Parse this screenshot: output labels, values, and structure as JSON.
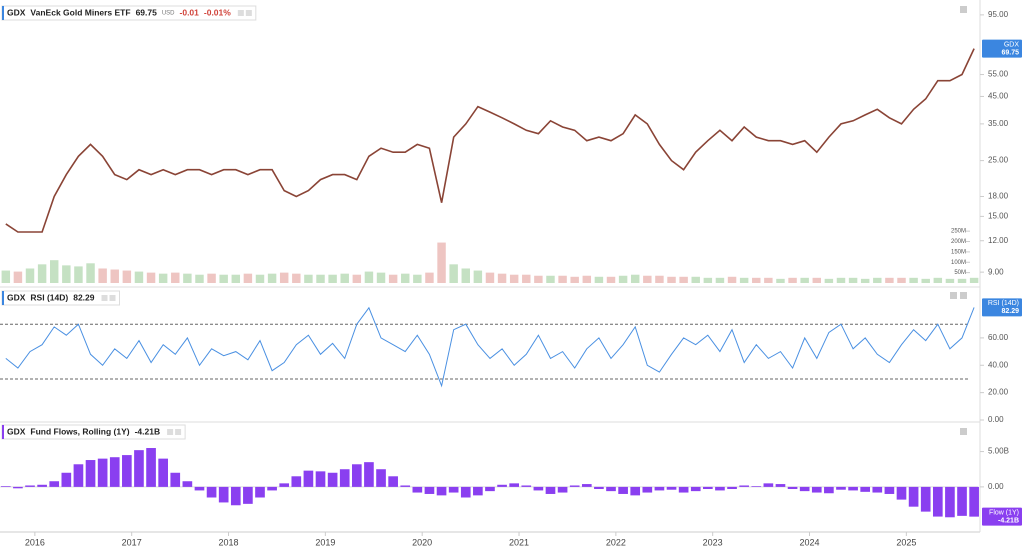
{
  "chart_data": [
    {
      "type": "line",
      "symbol": "GDX",
      "title": "VanEck Gold Miners ETF",
      "last": "69.75",
      "currency": "USD",
      "change": "-0.01",
      "change_pct": "-0.01%",
      "badge": "GDX",
      "color": "#8a4436",
      "badge_color": "#3b86e0",
      "log_scale": true,
      "x": [
        2015.7,
        2015.825,
        2015.95,
        2016.075,
        2016.2,
        2016.325,
        2016.45,
        2016.575,
        2016.7,
        2016.825,
        2016.95,
        2017.075,
        2017.2,
        2017.325,
        2017.45,
        2017.575,
        2017.7,
        2017.825,
        2017.95,
        2018.075,
        2018.2,
        2018.325,
        2018.45,
        2018.575,
        2018.7,
        2018.825,
        2018.95,
        2019.075,
        2019.2,
        2019.325,
        2019.45,
        2019.575,
        2019.7,
        2019.825,
        2019.95,
        2020.075,
        2020.2,
        2020.325,
        2020.45,
        2020.575,
        2020.7,
        2020.825,
        2020.95,
        2021.075,
        2021.2,
        2021.325,
        2021.45,
        2021.575,
        2021.7,
        2021.825,
        2021.95,
        2022.075,
        2022.2,
        2022.325,
        2022.45,
        2022.575,
        2022.7,
        2022.825,
        2022.95,
        2023.075,
        2023.2,
        2023.325,
        2023.45,
        2023.575,
        2023.7,
        2023.825,
        2023.95,
        2024.075,
        2024.2,
        2024.325,
        2024.45,
        2024.575,
        2024.7,
        2024.825,
        2024.95,
        2025.075,
        2025.2,
        2025.325,
        2025.45,
        2025.575,
        2025.7
      ],
      "values": [
        14,
        13,
        13,
        13,
        18,
        22,
        26,
        29,
        26,
        22,
        21,
        23,
        22,
        23,
        22,
        23,
        23,
        22,
        23,
        23,
        22,
        23,
        23,
        19,
        18,
        19,
        21,
        22,
        22,
        21,
        26,
        28,
        27,
        27,
        29,
        28,
        17,
        31,
        35,
        41,
        39,
        37,
        35,
        33,
        32,
        36,
        34,
        33,
        30,
        31,
        30,
        32,
        38,
        35,
        29,
        25,
        23,
        27,
        30,
        33,
        30,
        34,
        31,
        30,
        30,
        29,
        30,
        27,
        31,
        35,
        36,
        38,
        40,
        37,
        35,
        40,
        44,
        52,
        52,
        55,
        69.75
      ],
      "xlim": [
        2015.64,
        2025.74
      ],
      "ylim": [
        8,
        104
      ],
      "yticks": [
        {
          "value": 95,
          "label": "95.00"
        },
        {
          "value": 55,
          "label": "55.00"
        },
        {
          "value": 45,
          "label": "45.00"
        },
        {
          "value": 35,
          "label": "35.00"
        },
        {
          "value": 25,
          "label": "25.00"
        },
        {
          "value": 18,
          "label": "18.00"
        },
        {
          "value": 15,
          "label": "15.00"
        },
        {
          "value": 12,
          "label": "12.00"
        },
        {
          "value": 9,
          "label": "9.00"
        }
      ],
      "volume": {
        "type": "bar",
        "up_color": "#b7d9b4",
        "down_color": "#eab7b3",
        "values": [
          60000000,
          55000000,
          70000000,
          90000000,
          110000000,
          85000000,
          80000000,
          95000000,
          70000000,
          65000000,
          60000000,
          55000000,
          50000000,
          45000000,
          50000000,
          45000000,
          40000000,
          45000000,
          40000000,
          40000000,
          45000000,
          40000000,
          45000000,
          50000000,
          45000000,
          40000000,
          40000000,
          40000000,
          45000000,
          40000000,
          55000000,
          50000000,
          40000000,
          45000000,
          40000000,
          50000000,
          195000000,
          90000000,
          70000000,
          60000000,
          50000000,
          45000000,
          40000000,
          40000000,
          35000000,
          35000000,
          35000000,
          30000000,
          35000000,
          30000000,
          30000000,
          35000000,
          40000000,
          35000000,
          35000000,
          30000000,
          30000000,
          30000000,
          25000000,
          25000000,
          30000000,
          25000000,
          25000000,
          25000000,
          20000000,
          25000000,
          25000000,
          25000000,
          20000000,
          25000000,
          25000000,
          20000000,
          25000000,
          25000000,
          25000000,
          25000000,
          20000000,
          25000000,
          20000000,
          20000000,
          25000000
        ],
        "y2lim": [
          0,
          270000000
        ],
        "y2ticks": [
          {
            "value": 250000000,
            "label": "250M"
          },
          {
            "value": 200000000,
            "label": "200M"
          },
          {
            "value": 150000000,
            "label": "150M"
          },
          {
            "value": 100000000,
            "label": "100M"
          },
          {
            "value": 50000000,
            "label": "50M"
          }
        ]
      }
    },
    {
      "type": "line",
      "symbol": "GDX",
      "title": "RSI (14D)",
      "last": "82.29",
      "color": "#4a90e2",
      "badge_color": "#3b86e0",
      "x": [
        2015.7,
        2015.825,
        2015.95,
        2016.075,
        2016.2,
        2016.325,
        2016.45,
        2016.575,
        2016.7,
        2016.825,
        2016.95,
        2017.075,
        2017.2,
        2017.325,
        2017.45,
        2017.575,
        2017.7,
        2017.825,
        2017.95,
        2018.075,
        2018.2,
        2018.325,
        2018.45,
        2018.575,
        2018.7,
        2018.825,
        2018.95,
        2019.075,
        2019.2,
        2019.325,
        2019.45,
        2019.575,
        2019.7,
        2019.825,
        2019.95,
        2020.075,
        2020.2,
        2020.325,
        2020.45,
        2020.575,
        2020.7,
        2020.825,
        2020.95,
        2021.075,
        2021.2,
        2021.325,
        2021.45,
        2021.575,
        2021.7,
        2021.825,
        2021.95,
        2022.075,
        2022.2,
        2022.325,
        2022.45,
        2022.575,
        2022.7,
        2022.825,
        2022.95,
        2023.075,
        2023.2,
        2023.325,
        2023.45,
        2023.575,
        2023.7,
        2023.825,
        2023.95,
        2024.075,
        2024.2,
        2024.325,
        2024.45,
        2024.575,
        2024.7,
        2024.825,
        2024.95,
        2025.075,
        2025.2,
        2025.325,
        2025.45,
        2025.575,
        2025.7
      ],
      "values": [
        45,
        38,
        50,
        55,
        68,
        62,
        70,
        48,
        40,
        52,
        45,
        58,
        42,
        55,
        48,
        60,
        40,
        52,
        47,
        50,
        44,
        58,
        36,
        42,
        55,
        62,
        48,
        56,
        45,
        70,
        82,
        60,
        55,
        50,
        62,
        48,
        25,
        66,
        70,
        55,
        45,
        52,
        40,
        48,
        62,
        45,
        50,
        38,
        52,
        60,
        45,
        55,
        68,
        40,
        35,
        48,
        60,
        55,
        62,
        50,
        66,
        42,
        55,
        45,
        50,
        38,
        60,
        45,
        64,
        70,
        52,
        60,
        48,
        42,
        55,
        66,
        58,
        70,
        52,
        60,
        82.29
      ],
      "bands": [
        30,
        70
      ],
      "xlim": [
        2015.64,
        2025.74
      ],
      "ylim": [
        0,
        95
      ],
      "yticks": [
        {
          "value": 60,
          "label": "60.00"
        },
        {
          "value": 40,
          "label": "40.00"
        },
        {
          "value": 20,
          "label": "20.00"
        },
        {
          "value": 0,
          "label": "0.00"
        }
      ]
    },
    {
      "type": "bar",
      "symbol": "GDX",
      "title": "Fund Flows, Rolling (1Y)",
      "last": "-4.21B",
      "badge": "Flow (1Y)",
      "color": "#8a3ff0",
      "badge_color": "#8a3ff0",
      "x": [
        2015.7,
        2015.825,
        2015.95,
        2016.075,
        2016.2,
        2016.325,
        2016.45,
        2016.575,
        2016.7,
        2016.825,
        2016.95,
        2017.075,
        2017.2,
        2017.325,
        2017.45,
        2017.575,
        2017.7,
        2017.825,
        2017.95,
        2018.075,
        2018.2,
        2018.325,
        2018.45,
        2018.575,
        2018.7,
        2018.825,
        2018.95,
        2019.075,
        2019.2,
        2019.325,
        2019.45,
        2019.575,
        2019.7,
        2019.825,
        2019.95,
        2020.075,
        2020.2,
        2020.325,
        2020.45,
        2020.575,
        2020.7,
        2020.825,
        2020.95,
        2021.075,
        2021.2,
        2021.325,
        2021.45,
        2021.575,
        2021.7,
        2021.825,
        2021.95,
        2022.075,
        2022.2,
        2022.325,
        2022.45,
        2022.575,
        2022.7,
        2022.825,
        2022.95,
        2023.075,
        2023.2,
        2023.325,
        2023.45,
        2023.575,
        2023.7,
        2023.825,
        2023.95,
        2024.075,
        2024.2,
        2024.325,
        2024.45,
        2024.575,
        2024.7,
        2024.825,
        2024.95,
        2025.075,
        2025.2,
        2025.325,
        2025.45,
        2025.575,
        2025.7
      ],
      "values": [
        0.1,
        -0.2,
        0.2,
        0.3,
        0.8,
        2.0,
        3.2,
        3.8,
        4.0,
        4.2,
        4.5,
        5.2,
        5.5,
        4.0,
        2.0,
        0.8,
        -0.5,
        -1.5,
        -2.2,
        -2.6,
        -2.4,
        -1.5,
        -0.5,
        0.5,
        1.5,
        2.3,
        2.2,
        2.0,
        2.5,
        3.2,
        3.5,
        2.5,
        1.5,
        0.2,
        -0.8,
        -1.0,
        -1.2,
        -0.8,
        -1.5,
        -1.2,
        -0.6,
        0.3,
        0.5,
        0.2,
        -0.5,
        -1.0,
        -0.8,
        0.2,
        0.4,
        -0.3,
        -0.6,
        -1.0,
        -1.2,
        -0.8,
        -0.5,
        -0.4,
        -0.8,
        -0.6,
        -0.3,
        -0.5,
        -0.3,
        0.2,
        0.1,
        0.5,
        0.4,
        -0.3,
        -0.6,
        -0.8,
        -0.9,
        -0.4,
        -0.5,
        -0.7,
        -0.8,
        -1.0,
        -1.8,
        -2.8,
        -3.5,
        -4.2,
        -4.3,
        -4.1,
        -4.21
      ],
      "xlim": [
        2015.64,
        2025.74
      ],
      "ylim": [
        -6.1,
        8.9
      ],
      "yticks": [
        {
          "value": 5,
          "label": "5.00B"
        },
        {
          "value": 0,
          "label": "0.00"
        }
      ],
      "xticks": [
        2016,
        2017,
        2018,
        2019,
        2020,
        2021,
        2022,
        2023,
        2024,
        2025
      ]
    }
  ]
}
